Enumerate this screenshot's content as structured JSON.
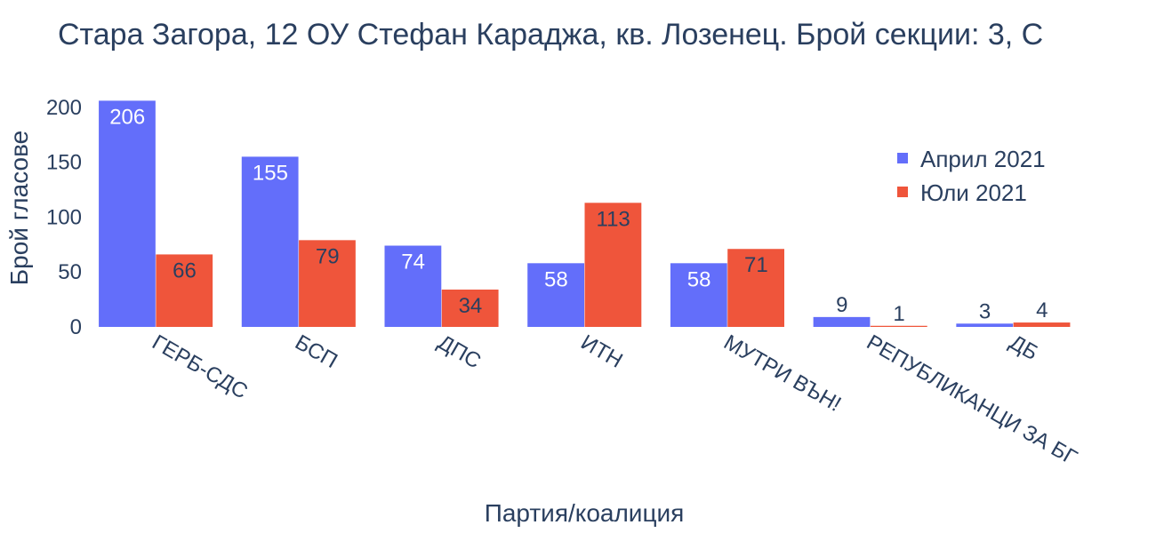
{
  "chart_data": {
    "type": "bar",
    "title": "Стара Загора, 12 ОУ Стефан Караджа, кв. Лозенец. Брой секции: 3,  С",
    "xlabel": "Партия/коалиция",
    "ylabel": "Брой гласове",
    "categories": [
      "ГЕРБ-СДС",
      "БСП",
      "ДПС",
      "ИТН",
      "МУТРИ ВЪН!",
      "РЕПУБЛИКАНЦИ ЗА БГ",
      "ДБ"
    ],
    "series": [
      {
        "name": "Април 2021",
        "color": "#636efa",
        "values": [
          206,
          155,
          74,
          58,
          58,
          9,
          3
        ]
      },
      {
        "name": "Юли 2021",
        "color": "#ef553b",
        "values": [
          66,
          79,
          34,
          113,
          71,
          1,
          4
        ]
      }
    ],
    "ylim": [
      0,
      216
    ],
    "yticks": [
      0,
      50,
      100,
      150,
      200
    ],
    "grid": false,
    "legend_position": "top-right"
  }
}
